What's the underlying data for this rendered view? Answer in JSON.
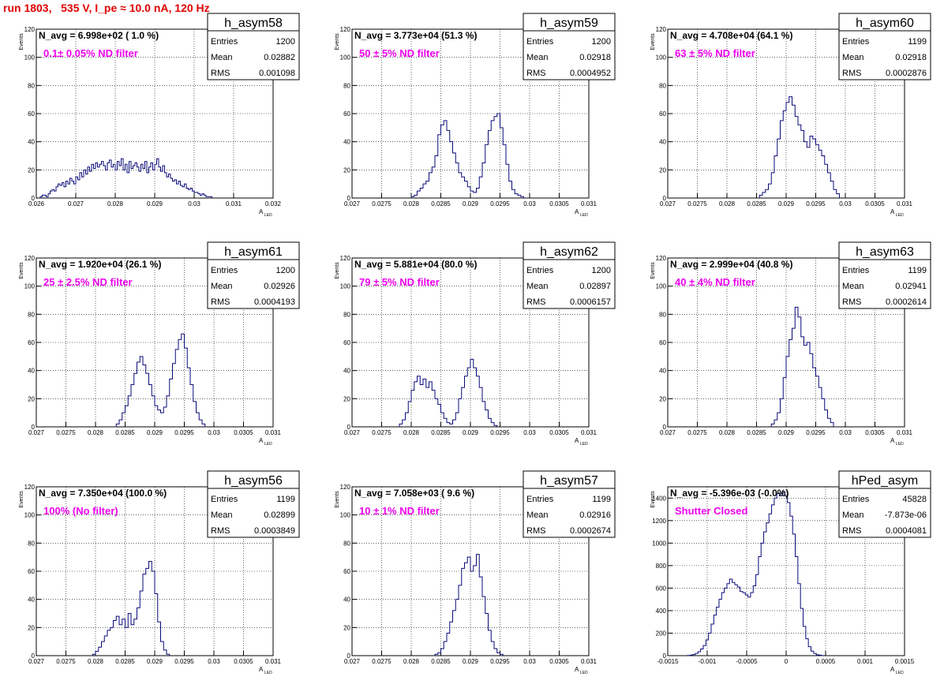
{
  "run_title": "run 1803,   535 V, I_pe ≈ 10.0 nA, 120 Hz",
  "stats_labels": {
    "entries": "Entries",
    "mean": "Mean",
    "rms": "RMS"
  },
  "axis_labels": {
    "y": "Events",
    "x_main": "A",
    "x_sub": "LED"
  },
  "colors": {
    "histogram": "#0a0a7a",
    "annotation": "#ee00ee",
    "title": "#e00000",
    "grid": "#000000"
  },
  "chart_data": [
    {
      "type": "bar",
      "name": "h_asym58",
      "navg": "N_avg = 6.998e+02 ( 1.0 %)",
      "filter": "0.1± 0.05% ND filter",
      "entries": "1200",
      "mean": "0.02882",
      "rms": "0.001098",
      "grid": true,
      "xlim": [
        0.026,
        0.032
      ],
      "ylim": [
        0,
        120
      ],
      "xticks": [
        0.026,
        0.027,
        0.028,
        0.029,
        0.03,
        0.031,
        0.032
      ],
      "xtick_labels": [
        "0.026",
        "0.027",
        "0.028",
        "0.029",
        "0.03",
        "0.031",
        "0.032"
      ],
      "yticks": [
        0,
        20,
        40,
        60,
        80,
        100,
        120
      ],
      "ytick_labels": [
        "0",
        "20",
        "40",
        "60",
        "80",
        "100",
        "120"
      ],
      "bin_start": 0.0261,
      "bin_width": 5e-05,
      "values": [
        1,
        2,
        2,
        1,
        3,
        5,
        6,
        5,
        8,
        10,
        9,
        11,
        8,
        12,
        10,
        14,
        12,
        10,
        15,
        13,
        18,
        15,
        20,
        17,
        22,
        19,
        24,
        21,
        25,
        22,
        24,
        26,
        23,
        20,
        25,
        27,
        22,
        24,
        20,
        26,
        23,
        28,
        20,
        24,
        18,
        26,
        21,
        23,
        25,
        22,
        19,
        24,
        21,
        26,
        18,
        22,
        25,
        20,
        24,
        28,
        22,
        19,
        23,
        18,
        15,
        17,
        14,
        12,
        13,
        10,
        12,
        9,
        8,
        10,
        7,
        6,
        7,
        5,
        4,
        4,
        3,
        2,
        3,
        2,
        1,
        1,
        1
      ]
    },
    {
      "type": "bar",
      "name": "h_asym59",
      "navg": "N_avg = 3.773e+04 (51.3 %)",
      "filter": "50 ± 5% ND filter",
      "entries": "1200",
      "mean": "0.02918",
      "rms": "0.0004952",
      "grid": true,
      "xlim": [
        0.027,
        0.031
      ],
      "ylim": [
        0,
        120
      ],
      "xticks": [
        0.027,
        0.0275,
        0.028,
        0.0285,
        0.029,
        0.0295,
        0.03,
        0.0305,
        0.031
      ],
      "xtick_labels": [
        "0.027",
        "0.0275",
        "0.028",
        "0.0285",
        "0.029",
        "0.0295",
        "0.03",
        "0.0305",
        "0.031"
      ],
      "yticks": [
        0,
        20,
        40,
        60,
        80,
        100,
        120
      ],
      "ytick_labels": [
        "0",
        "20",
        "40",
        "60",
        "80",
        "100",
        "120"
      ],
      "bin_start": 0.028,
      "bin_width": 5e-05,
      "values": [
        1,
        2,
        5,
        7,
        10,
        12,
        18,
        22,
        30,
        45,
        52,
        55,
        48,
        40,
        32,
        25,
        18,
        15,
        12,
        8,
        5,
        4,
        7,
        15,
        25,
        38,
        48,
        55,
        58,
        60,
        50,
        38,
        24,
        12,
        6,
        3,
        2,
        1
      ]
    },
    {
      "type": "bar",
      "name": "h_asym60",
      "navg": "N_avg = 4.708e+04 (64.1 %)",
      "filter": "63 ± 5% ND filter",
      "entries": "1199",
      "mean": "0.02918",
      "rms": "0.0002876",
      "grid": true,
      "xlim": [
        0.027,
        0.031
      ],
      "ylim": [
        0,
        120
      ],
      "xticks": [
        0.027,
        0.0275,
        0.028,
        0.0285,
        0.029,
        0.0295,
        0.03,
        0.0305,
        0.031
      ],
      "xtick_labels": [
        "0.027",
        "0.0275",
        "0.028",
        "0.0285",
        "0.029",
        "0.0295",
        "0.03",
        "0.0305",
        "0.031"
      ],
      "yticks": [
        0,
        20,
        40,
        60,
        80,
        100,
        120
      ],
      "ytick_labels": [
        "0",
        "20",
        "40",
        "60",
        "80",
        "100",
        "120"
      ],
      "bin_start": 0.02855,
      "bin_width": 5e-05,
      "values": [
        2,
        4,
        6,
        10,
        18,
        30,
        42,
        55,
        62,
        68,
        72,
        66,
        58,
        52,
        48,
        40,
        36,
        44,
        42,
        38,
        34,
        30,
        24,
        18,
        12,
        6,
        3
      ]
    },
    {
      "type": "bar",
      "name": "h_asym61",
      "navg": "N_avg = 1.920e+04 (26.1 %)",
      "filter": "25 ± 2.5% ND filter",
      "entries": "1200",
      "mean": "0.02926",
      "rms": "0.0004193",
      "grid": true,
      "xlim": [
        0.027,
        0.031
      ],
      "ylim": [
        0,
        120
      ],
      "xticks": [
        0.027,
        0.0275,
        0.028,
        0.0285,
        0.029,
        0.0295,
        0.03,
        0.0305,
        0.031
      ],
      "xtick_labels": [
        "0.027",
        "0.0275",
        "0.028",
        "0.0285",
        "0.029",
        "0.0295",
        "0.03",
        "0.0305",
        "0.031"
      ],
      "yticks": [
        0,
        20,
        40,
        60,
        80,
        100,
        120
      ],
      "ytick_labels": [
        "0",
        "20",
        "40",
        "60",
        "80",
        "100",
        "120"
      ],
      "bin_start": 0.02835,
      "bin_width": 5e-05,
      "values": [
        2,
        5,
        10,
        15,
        22,
        30,
        38,
        46,
        50,
        44,
        38,
        30,
        22,
        15,
        12,
        10,
        14,
        22,
        34,
        45,
        55,
        62,
        66,
        56,
        42,
        30,
        18,
        10,
        5,
        2
      ]
    },
    {
      "type": "bar",
      "name": "h_asym62",
      "navg": "N_avg = 5.881e+04 (80.0 %)",
      "filter": "79 ± 5% ND filter",
      "entries": "1200",
      "mean": "0.02897",
      "rms": "0.0006157",
      "grid": true,
      "xlim": [
        0.027,
        0.031
      ],
      "ylim": [
        0,
        120
      ],
      "xticks": [
        0.027,
        0.0275,
        0.028,
        0.0285,
        0.029,
        0.0295,
        0.03,
        0.0305,
        0.031
      ],
      "xtick_labels": [
        "0.027",
        "0.0275",
        "0.028",
        "0.0285",
        "0.029",
        "0.0295",
        "0.03",
        "0.0305",
        "0.031"
      ],
      "yticks": [
        0,
        20,
        40,
        60,
        80,
        100,
        120
      ],
      "ytick_labels": [
        "0",
        "20",
        "40",
        "60",
        "80",
        "100",
        "120"
      ],
      "bin_start": 0.0278,
      "bin_width": 5e-05,
      "values": [
        2,
        5,
        10,
        18,
        26,
        32,
        36,
        30,
        34,
        28,
        32,
        26,
        20,
        16,
        10,
        6,
        3,
        2,
        5,
        10,
        20,
        28,
        36,
        42,
        48,
        42,
        36,
        28,
        18,
        12,
        6,
        3,
        1
      ]
    },
    {
      "type": "bar",
      "name": "h_asym63",
      "navg": "N_avg = 2.999e+04 (40.8 %)",
      "filter": "40 ± 4% ND filter",
      "entries": "1199",
      "mean": "0.02941",
      "rms": "0.0002614",
      "grid": true,
      "xlim": [
        0.027,
        0.031
      ],
      "ylim": [
        0,
        120
      ],
      "xticks": [
        0.027,
        0.0275,
        0.028,
        0.0285,
        0.029,
        0.0295,
        0.03,
        0.0305,
        0.031
      ],
      "xtick_labels": [
        "0.027",
        "0.0275",
        "0.028",
        "0.0285",
        "0.029",
        "0.0295",
        "0.03",
        "0.0305",
        "0.031"
      ],
      "yticks": [
        0,
        20,
        40,
        60,
        80,
        100,
        120
      ],
      "ytick_labels": [
        "0",
        "20",
        "40",
        "60",
        "80",
        "100",
        "120"
      ],
      "bin_start": 0.02875,
      "bin_width": 5e-05,
      "values": [
        2,
        5,
        10,
        20,
        35,
        50,
        62,
        70,
        85,
        78,
        64,
        58,
        60,
        52,
        42,
        36,
        28,
        20,
        12,
        6,
        3
      ]
    },
    {
      "type": "bar",
      "name": "h_asym56",
      "navg": "N_avg = 7.350e+04 (100.0 %)",
      "filter": "100% (No filter)",
      "entries": "1199",
      "mean": "0.02899",
      "rms": "0.0003849",
      "grid": true,
      "xlim": [
        0.027,
        0.031
      ],
      "ylim": [
        0,
        120
      ],
      "xticks": [
        0.027,
        0.0275,
        0.028,
        0.0285,
        0.029,
        0.0295,
        0.03,
        0.0305,
        0.031
      ],
      "xtick_labels": [
        "0.027",
        "0.0275",
        "0.028",
        "0.0285",
        "0.029",
        "0.0295",
        "0.03",
        "0.0305",
        "0.031"
      ],
      "yticks": [
        0,
        20,
        40,
        60,
        80,
        100,
        120
      ],
      "ytick_labels": [
        "0",
        "20",
        "40",
        "60",
        "80",
        "100",
        "120"
      ],
      "bin_start": 0.02795,
      "bin_width": 5e-05,
      "values": [
        1,
        3,
        6,
        10,
        14,
        18,
        20,
        25,
        28,
        22,
        26,
        20,
        30,
        22,
        26,
        34,
        46,
        58,
        62,
        67,
        60,
        44,
        24,
        10,
        4,
        1
      ]
    },
    {
      "type": "bar",
      "name": "h_asym57",
      "navg": "N_avg = 7.058e+03 ( 9.6 %)",
      "filter": "10 ± 1% ND filter",
      "entries": "1199",
      "mean": "0.02916",
      "rms": "0.0002674",
      "grid": true,
      "xlim": [
        0.027,
        0.031
      ],
      "ylim": [
        0,
        120
      ],
      "xticks": [
        0.027,
        0.0275,
        0.028,
        0.0285,
        0.029,
        0.0295,
        0.03,
        0.0305,
        0.031
      ],
      "xtick_labels": [
        "0.027",
        "0.0275",
        "0.028",
        "0.0285",
        "0.029",
        "0.0295",
        "0.03",
        "0.0305",
        "0.031"
      ],
      "yticks": [
        0,
        20,
        40,
        60,
        80,
        100,
        120
      ],
      "ytick_labels": [
        "0",
        "20",
        "40",
        "60",
        "80",
        "100",
        "120"
      ],
      "bin_start": 0.0284,
      "bin_width": 5e-05,
      "values": [
        1,
        2,
        5,
        10,
        16,
        24,
        32,
        40,
        50,
        62,
        66,
        70,
        60,
        64,
        72,
        56,
        42,
        30,
        18,
        10,
        5,
        2,
        1
      ]
    },
    {
      "type": "bar",
      "name": "hPed_asym",
      "navg": "N_avg = -5.396e-03 (-0.0%)",
      "filter": "Shutter Closed",
      "entries": "45828",
      "mean": "-7.873e-06",
      "rms": "0.0004081",
      "grid": true,
      "xlim": [
        -0.0015,
        0.0015
      ],
      "ylim": [
        0,
        1500
      ],
      "xticks": [
        -0.0015,
        -0.001,
        -0.0005,
        0,
        0.0005,
        0.001,
        0.0015
      ],
      "xtick_labels": [
        "-0.0015",
        "-0.001",
        "-0.0005",
        "0",
        "0.0005",
        "0.001",
        "0.0015"
      ],
      "yticks": [
        0,
        200,
        400,
        600,
        800,
        1000,
        1200,
        1400
      ],
      "ytick_labels": [
        "0",
        "200",
        "400",
        "600",
        "800",
        "1000",
        "1200",
        "1400"
      ],
      "bin_start": -0.00125,
      "bin_width": 3.33e-05,
      "values": [
        2,
        5,
        10,
        20,
        35,
        60,
        90,
        140,
        200,
        280,
        360,
        430,
        500,
        560,
        600,
        640,
        680,
        650,
        630,
        610,
        570,
        560,
        540,
        520,
        560,
        620,
        720,
        880,
        1000,
        1100,
        1180,
        1260,
        1340,
        1400,
        1440,
        1420,
        1460,
        1420,
        1360,
        1240,
        1080,
        880,
        640,
        420,
        260,
        150,
        80,
        40,
        20,
        8,
        4,
        1
      ]
    }
  ]
}
